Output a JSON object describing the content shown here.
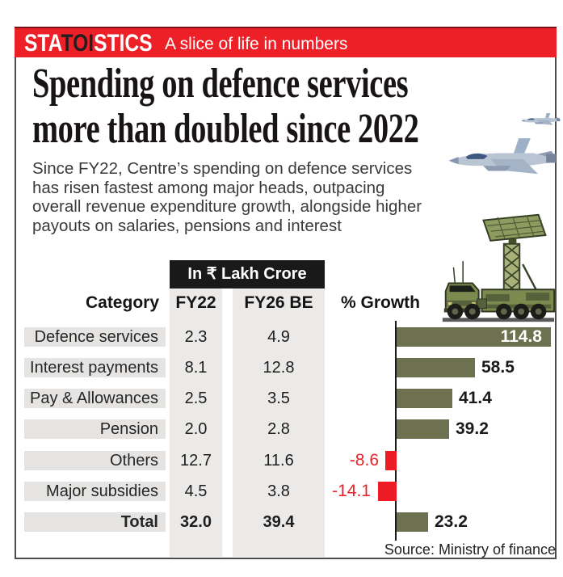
{
  "masthead": {
    "brand_sta": "STA",
    "brand_toi": "TOI",
    "brand_stics": "STICS",
    "tagline": "A slice of life in numbers"
  },
  "headline": {
    "line1": "Spending on defence services",
    "line2": "more than doubled since 2022"
  },
  "intro_lines": [
    "Since FY22, Centre’s spending on defence services",
    "has risen fastest among major heads, outpacing",
    "overall revenue expenditure growth, alongside higher",
    "payouts on salaries, pensions and interest"
  ],
  "table": {
    "unit_label": "In ₹ Lakh Crore",
    "headers": {
      "category": "Category",
      "fy22": "FY22",
      "fy26": "FY26 BE",
      "growth": "% Growth"
    },
    "rows": [
      {
        "label": "Defence services",
        "fy22": "2.3",
        "fy26": "4.9",
        "growth_label": "114.8"
      },
      {
        "label": "Interest payments",
        "fy22": "8.1",
        "fy26": "12.8",
        "growth_label": "58.5"
      },
      {
        "label": "Pay & Allowances",
        "fy22": "2.5",
        "fy26": "3.5",
        "growth_label": "41.4"
      },
      {
        "label": "Pension",
        "fy22": "2.0",
        "fy26": "2.8",
        "growth_label": "39.2"
      },
      {
        "label": "Others",
        "fy22": "12.7",
        "fy26": "11.6",
        "growth_label": "-8.6"
      },
      {
        "label": "Major subsidies",
        "fy22": "4.5",
        "fy26": "3.8",
        "growth_label": "-14.1"
      },
      {
        "label": "Total",
        "fy22": "32.0",
        "fy26": "39.4",
        "growth_label": "23.2"
      }
    ]
  },
  "source": "Source: Ministry of finance",
  "colors": {
    "masthead_red": "#ed2028",
    "bar_positive_olive": "#6d7150",
    "bar_negative_red": "#ed1c24",
    "row_band_gray": "#e5e4e3",
    "column_stripe_gray": "#ebeae9",
    "unit_box_black": "#191919"
  },
  "chart_data": {
    "type": "bar",
    "orientation": "horizontal",
    "title": "Spending on defence services more than doubled since 2022",
    "subtitle": "Since FY22, Centre’s spending on defence services has risen fastest among major heads, outpacing overall revenue expenditure growth, alongside higher payouts on salaries, pensions and interest",
    "categories": [
      "Defence services",
      "Interest payments",
      "Pay & Allowances",
      "Pension",
      "Others",
      "Major subsidies",
      "Total"
    ],
    "series": [
      {
        "name": "FY22",
        "unit": "₹ lakh crore",
        "values": [
          2.3,
          8.1,
          2.5,
          2.0,
          12.7,
          4.5,
          32.0
        ]
      },
      {
        "name": "FY26 BE",
        "unit": "₹ lakh crore",
        "values": [
          4.9,
          12.8,
          3.5,
          2.8,
          11.6,
          3.8,
          39.4
        ]
      },
      {
        "name": "% Growth",
        "unit": "%",
        "values": [
          114.8,
          58.5,
          41.4,
          39.2,
          -8.6,
          -14.1,
          23.2
        ]
      }
    ],
    "plotted_series": "% Growth",
    "value_labels_visible": true,
    "xlim": [
      -20,
      120
    ],
    "grid": false,
    "legend": false,
    "positive_color": "#6d7150",
    "negative_color": "#ed1c24",
    "source": "Source: Ministry of finance"
  }
}
